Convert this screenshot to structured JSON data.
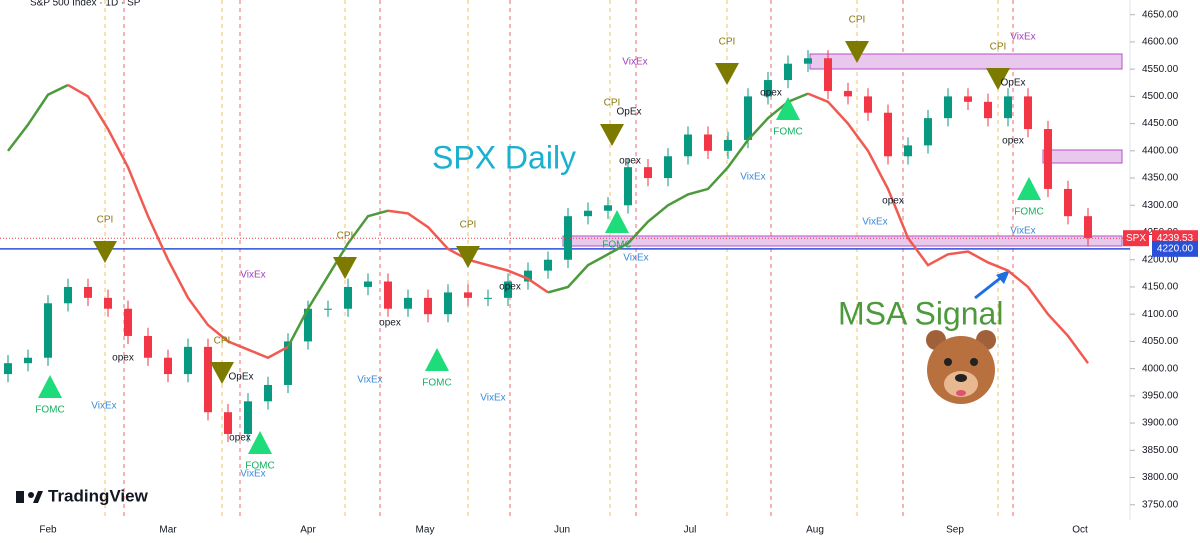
{
  "chart_data": {
    "type": "candlestick",
    "title": "S&P 500 Index · 1D · SP",
    "heading": "SPX Daily",
    "signal_label": "MSA Signal",
    "brand": "TradingView",
    "open": [
      3990,
      4010,
      4020,
      4120,
      4150,
      4130,
      4110,
      4060,
      4020,
      3990,
      4040,
      3920,
      3880,
      3940,
      3970,
      4050,
      4110,
      4110,
      4150,
      4160,
      4110,
      4130,
      4100,
      4140,
      4130,
      4130,
      4160,
      4180,
      4200,
      4280,
      4290,
      4300,
      4370,
      4350,
      4390,
      4430,
      4400,
      4420,
      4500,
      4530,
      4560,
      4570,
      4510,
      4500,
      4470,
      4390,
      4410,
      4460,
      4500,
      4490,
      4460,
      4500,
      4440,
      4330,
      4280
    ],
    "high": [
      4025,
      4035,
      4135,
      4165,
      4165,
      4145,
      4125,
      4075,
      4035,
      4055,
      4055,
      3935,
      3955,
      3985,
      4065,
      4125,
      4125,
      4165,
      4175,
      4175,
      4145,
      4145,
      4155,
      4155,
      4145,
      4175,
      4195,
      4215,
      4295,
      4305,
      4315,
      4385,
      4385,
      4405,
      4445,
      4445,
      4435,
      4515,
      4545,
      4575,
      4585,
      4585,
      4525,
      4515,
      4485,
      4425,
      4475,
      4515,
      4515,
      4505,
      4515,
      4515,
      4455,
      4345,
      4295
    ],
    "low": [
      3975,
      3995,
      4005,
      4105,
      4115,
      4095,
      4045,
      4005,
      3975,
      3975,
      3905,
      3865,
      3865,
      3925,
      3955,
      4035,
      4095,
      4095,
      4135,
      4095,
      4095,
      4085,
      4085,
      4115,
      4115,
      4115,
      4145,
      4165,
      4185,
      4265,
      4275,
      4285,
      4335,
      4335,
      4375,
      4385,
      4385,
      4405,
      4485,
      4515,
      4545,
      4495,
      4485,
      4455,
      4375,
      4375,
      4395,
      4445,
      4475,
      4445,
      4445,
      4425,
      4315,
      4265,
      4225
    ],
    "close": [
      4010,
      4020,
      4120,
      4150,
      4130,
      4110,
      4060,
      4020,
      3990,
      4040,
      3920,
      3880,
      3940,
      3970,
      4050,
      4110,
      4110,
      4150,
      4160,
      4110,
      4130,
      4100,
      4140,
      4130,
      4130,
      4160,
      4180,
      4200,
      4280,
      4290,
      4300,
      4370,
      4350,
      4390,
      4430,
      4400,
      4420,
      4500,
      4530,
      4560,
      4570,
      4510,
      4500,
      4470,
      4390,
      4410,
      4460,
      4500,
      4490,
      4460,
      4500,
      4440,
      4330,
      4280,
      4240
    ],
    "up_color": "#089981",
    "down_color": "#f23645",
    "series": [
      {
        "color": "#4c9a3c",
        "values": [
          4400,
          4448,
          4503,
          4521,
          null,
          null,
          null,
          null,
          null,
          null,
          null,
          null,
          null,
          null,
          4040,
          4110,
          4170,
          4230,
          4280,
          4290,
          null,
          null,
          null,
          null,
          null,
          null,
          null,
          4140,
          4150,
          4190,
          4210,
          4230,
          4270,
          4300,
          4320,
          4330,
          4370,
          4420,
          4460,
          4490,
          4505,
          null,
          null,
          null,
          null,
          null,
          null,
          null,
          null,
          null,
          null,
          null,
          null,
          null,
          null
        ]
      },
      {
        "color": "#f05a50",
        "values": [
          null,
          null,
          null,
          4521,
          4500,
          4440,
          4370,
          4280,
          4200,
          4130,
          4080,
          4050,
          4035,
          4020,
          4040,
          null,
          null,
          null,
          null,
          4290,
          4285,
          4260,
          4220,
          4200,
          4190,
          4180,
          4165,
          4140,
          null,
          null,
          null,
          null,
          null,
          null,
          null,
          null,
          null,
          null,
          null,
          null,
          4505,
          4490,
          4450,
          4400,
          4330,
          4240,
          4190,
          4210,
          4215,
          4195,
          4180,
          4150,
          4100,
          4060,
          4010
        ]
      }
    ],
    "months": [
      "Feb",
      "Mar",
      "Apr",
      "May",
      "Jun",
      "Jul",
      "Aug",
      "Sep",
      "Oct"
    ],
    "ylim": [
      3722,
      4677
    ],
    "yticks": [
      {
        "value": 3750,
        "label": "3750.00"
      },
      {
        "value": 3800,
        "label": "3800.00"
      },
      {
        "value": 3850,
        "label": "3850.00"
      },
      {
        "value": 3900,
        "label": "3900.00"
      },
      {
        "value": 3950,
        "label": "3950.00"
      },
      {
        "value": 4000,
        "label": "4000.00"
      },
      {
        "value": 4050,
        "label": "4050.00"
      },
      {
        "value": 4100,
        "label": "4100.00"
      },
      {
        "value": 4150,
        "label": "4150.00"
      },
      {
        "value": 4200,
        "label": "4200.00"
      },
      {
        "value": 4250,
        "label": "4250.00"
      },
      {
        "value": 4300,
        "label": "4300.00"
      },
      {
        "value": 4350,
        "label": "4350.00"
      },
      {
        "value": 4400,
        "label": "4400.00"
      },
      {
        "value": 4450,
        "label": "4450.00"
      },
      {
        "value": 4500,
        "label": "4500.00"
      },
      {
        "value": 4550,
        "label": "4550.00"
      },
      {
        "value": 4600,
        "label": "4600.00"
      },
      {
        "value": 4650,
        "label": "4650.00"
      }
    ],
    "last_price": {
      "symbol": "SPX",
      "value": 4239.53
    },
    "hline": {
      "value": 4220,
      "label": "4220.00"
    },
    "cpi": [
      "CPI",
      "CPI",
      "CPI",
      "CPI",
      "CPI",
      "CPI",
      "CPI",
      "CPI"
    ],
    "fomc": [
      "FOMC",
      "FOMC",
      "FOMC",
      "FOMC",
      "FOMC",
      "FOMC"
    ],
    "vixex": [
      "VixEx",
      "VixEx",
      "VixEx",
      "VixEx",
      "VixEx",
      "VixEx",
      "VixEx",
      "VixEx",
      "VixEx",
      "VixEx",
      "VixEx"
    ],
    "opex": [
      "opex",
      "OpEx",
      "opex",
      "opex",
      "opex",
      "OpEx",
      "opex",
      "opex",
      "opex",
      "opex",
      "OpEx"
    ]
  }
}
